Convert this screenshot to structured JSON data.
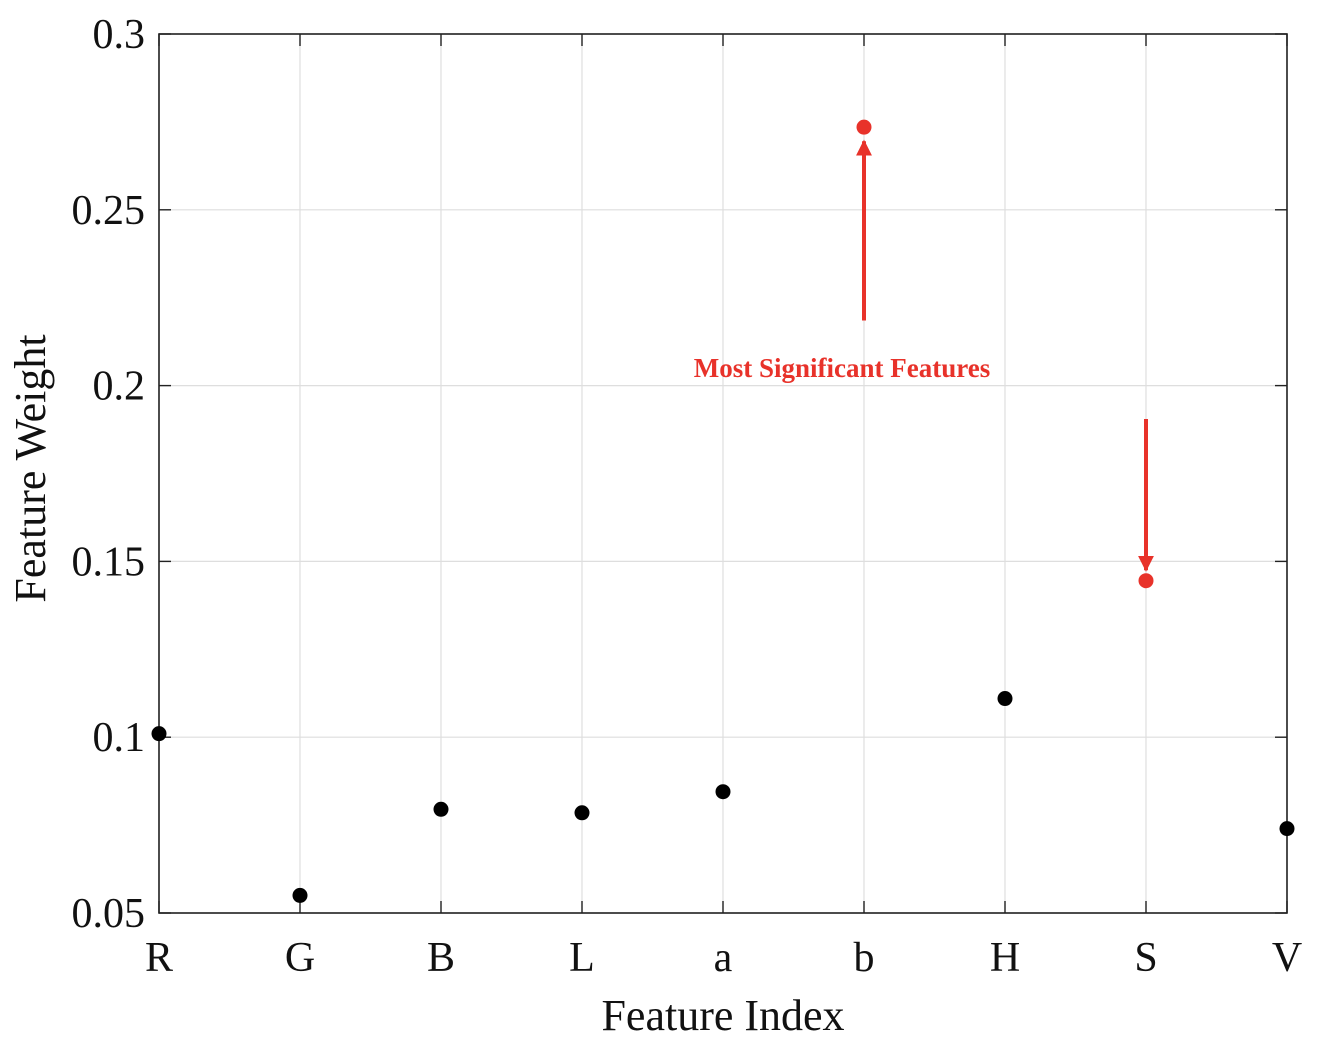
{
  "chart_data": {
    "type": "scatter",
    "title": "",
    "xlabel": "Feature Index",
    "ylabel": "Feature Weight",
    "categories": [
      "R",
      "G",
      "B",
      "L",
      "a",
      "b",
      "H",
      "S",
      "V"
    ],
    "ylim": [
      0.05,
      0.3
    ],
    "yticks": [
      0.05,
      0.1,
      0.15,
      0.2,
      0.25,
      0.3
    ],
    "ytick_labels": [
      "0.05",
      "0.1",
      "0.15",
      "0.2",
      "0.25",
      "0.3"
    ],
    "grid": true,
    "series": [
      {
        "values": [
          0.101,
          0.055,
          0.0795,
          0.0785,
          0.0845,
          0.2735,
          0.111,
          0.1445,
          0.074
        ],
        "color": "#000000",
        "highlight_color": "#e8322a",
        "highlighted": [
          "b",
          "S"
        ]
      }
    ],
    "annotations": [
      {
        "text": "Most Significant Features",
        "color": "#e8322a",
        "arrows_to": [
          "b",
          "S"
        ]
      }
    ]
  }
}
